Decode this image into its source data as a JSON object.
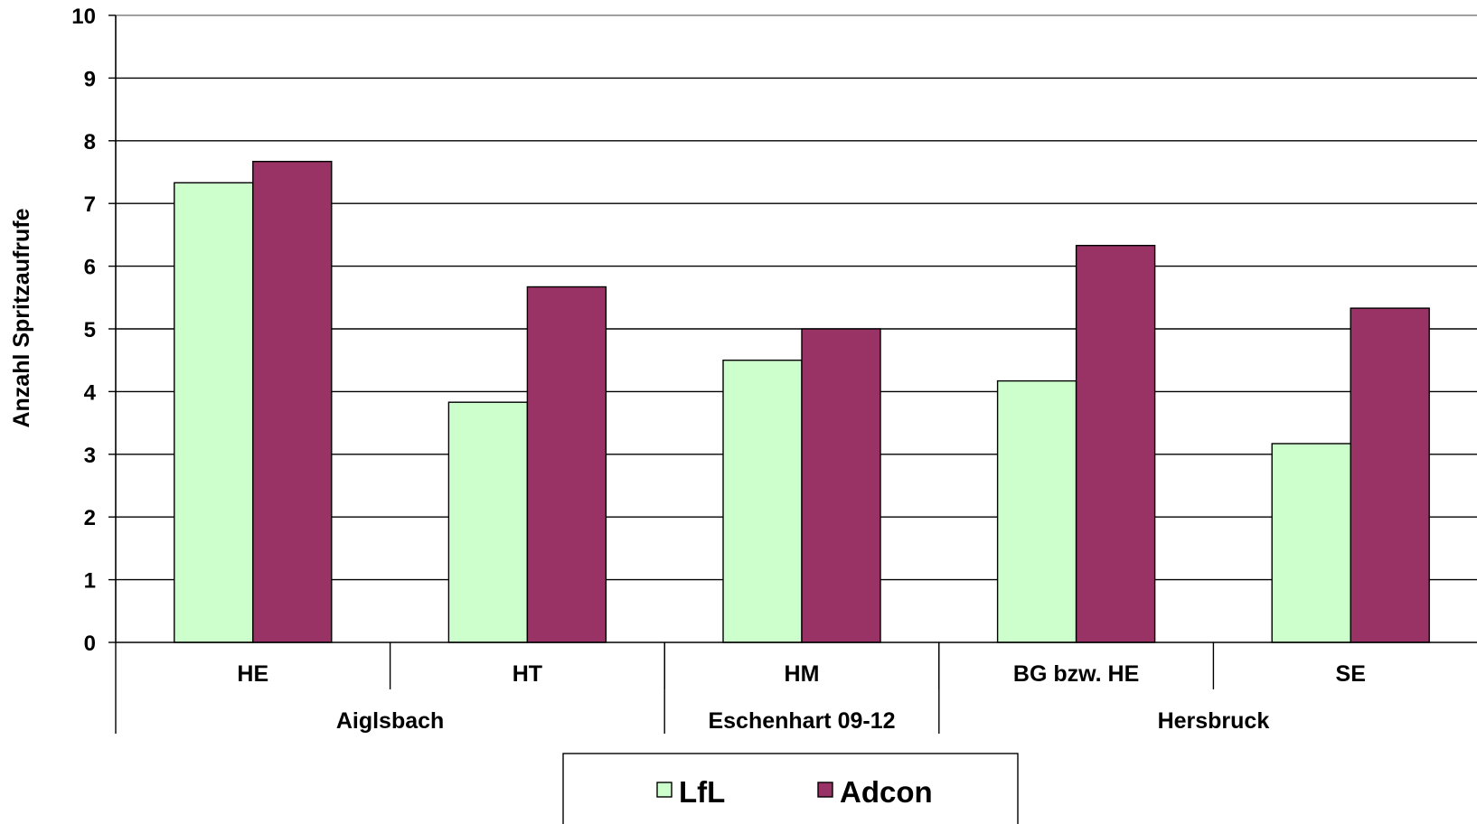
{
  "chart_data": {
    "type": "bar",
    "title": "",
    "ylabel": "Anzahl Spritzaufrufe",
    "xlabel": "",
    "ylim": [
      0,
      10
    ],
    "yticks": [
      0,
      1,
      2,
      3,
      4,
      5,
      6,
      7,
      8,
      9,
      10
    ],
    "grid": true,
    "legend_position": "bottom",
    "categories": [
      "HE",
      "HT",
      "HM",
      "BG bzw. HE",
      "SE"
    ],
    "groups": [
      {
        "label": "Aiglsbach",
        "categories": [
          "HE",
          "HT"
        ]
      },
      {
        "label": "Eschenhart 09-12",
        "categories": [
          "HM"
        ]
      },
      {
        "label": "Hersbruck",
        "categories": [
          "BG bzw. HE",
          "SE"
        ]
      }
    ],
    "series": [
      {
        "name": "LfL",
        "color": "#ccffcc",
        "values": [
          7.33,
          3.83,
          4.5,
          4.17,
          3.17
        ]
      },
      {
        "name": "Adcon",
        "color": "#993366",
        "values": [
          7.67,
          5.67,
          5.0,
          6.33,
          5.33
        ]
      }
    ]
  }
}
